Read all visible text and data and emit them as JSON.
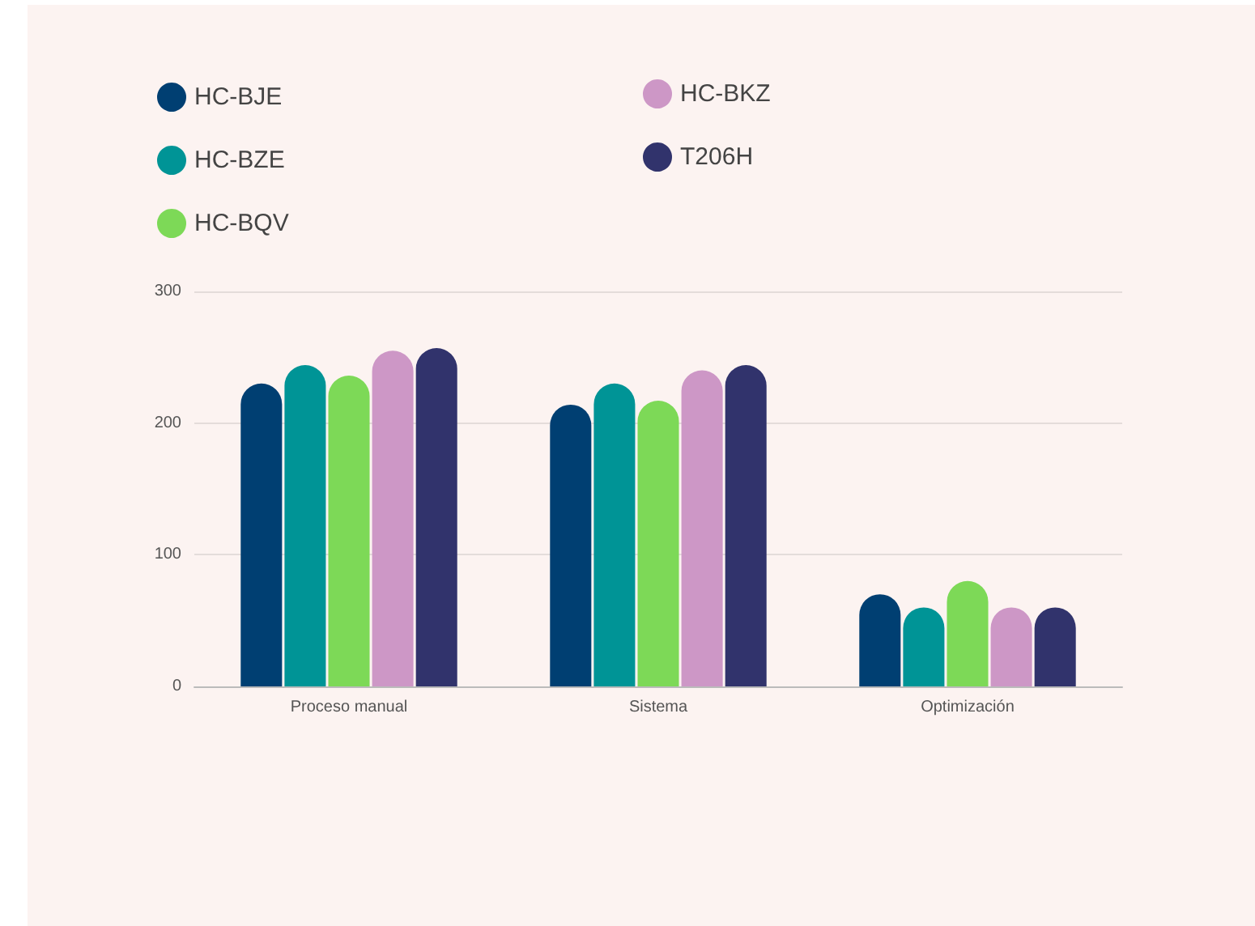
{
  "chart_data": {
    "type": "bar",
    "categories": [
      "Proceso manual",
      "Sistema",
      "Optimización"
    ],
    "series": [
      {
        "name": "HC-BJE",
        "color": "#003f72",
        "values": [
          230,
          214,
          70
        ]
      },
      {
        "name": "HC-BZE",
        "color": "#009496",
        "values": [
          244,
          230,
          60
        ]
      },
      {
        "name": "HC-BQV",
        "color": "#7dd957",
        "values": [
          236,
          217,
          80
        ]
      },
      {
        "name": "HC-BKZ",
        "color": "#cd97c6",
        "values": [
          255,
          240,
          60
        ]
      },
      {
        "name": "T206H",
        "color": "#31336c",
        "values": [
          257,
          244,
          60
        ]
      }
    ],
    "ylim": [
      0,
      300
    ],
    "yticks": [
      0,
      100,
      200,
      300
    ],
    "grid": "y",
    "legend": "top left"
  }
}
